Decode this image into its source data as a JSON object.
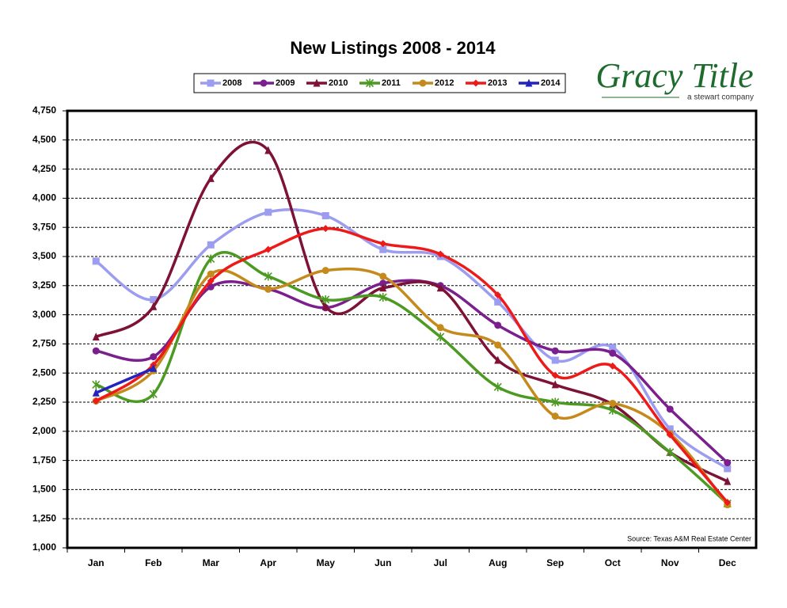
{
  "chart_data": {
    "type": "line",
    "title": "New Listings 2008 - 2014",
    "logo": {
      "name": "Gracy Title",
      "tagline": "a stewart company"
    },
    "source": "Source: Texas A&M Real Estate Center",
    "categories": [
      "Jan",
      "Feb",
      "Mar",
      "Apr",
      "May",
      "Jun",
      "Jul",
      "Aug",
      "Sep",
      "Oct",
      "Nov",
      "Dec"
    ],
    "series": [
      {
        "name": "2008",
        "color": "#9c9cf0",
        "marker": "square",
        "values": [
          3460,
          3130,
          3600,
          3880,
          3850,
          3560,
          3500,
          3110,
          2610,
          2720,
          2020,
          1680
        ]
      },
      {
        "name": "2009",
        "color": "#7b1f8e",
        "marker": "circle",
        "values": [
          2690,
          2640,
          3240,
          3220,
          3060,
          3270,
          3250,
          2910,
          2690,
          2670,
          2190,
          1730
        ]
      },
      {
        "name": "2010",
        "color": "#7d1236",
        "marker": "triangle",
        "values": [
          2810,
          3070,
          4170,
          4410,
          3070,
          3230,
          3230,
          2610,
          2400,
          2230,
          1820,
          1570
        ]
      },
      {
        "name": "2011",
        "color": "#4c9a22",
        "marker": "x",
        "values": [
          2400,
          2320,
          3480,
          3330,
          3130,
          3150,
          2810,
          2380,
          2250,
          2180,
          1820,
          1380
        ]
      },
      {
        "name": "2012",
        "color": "#c58a1c",
        "marker": "circle",
        "values": [
          2260,
          2520,
          3350,
          3220,
          3380,
          3330,
          2890,
          2740,
          2130,
          2240,
          1980,
          1370
        ]
      },
      {
        "name": "2013",
        "color": "#ee1a1a",
        "marker": "diamond",
        "values": [
          2260,
          2570,
          3290,
          3560,
          3740,
          3610,
          3520,
          3170,
          2480,
          2560,
          1970,
          1390
        ]
      },
      {
        "name": "2014",
        "color": "#2323bd",
        "marker": "triangle",
        "values": [
          2330,
          2540,
          null,
          null,
          null,
          null,
          null,
          null,
          null,
          null,
          null,
          null
        ]
      }
    ],
    "ylim": [
      1000,
      4750
    ],
    "yticks": [
      {
        "value": 1000,
        "label": "1,000"
      },
      {
        "value": 1250,
        "label": "1,250"
      },
      {
        "value": 1500,
        "label": "1,500"
      },
      {
        "value": 1750,
        "label": "1,750"
      },
      {
        "value": 2000,
        "label": "2,000"
      },
      {
        "value": 2250,
        "label": "2,250"
      },
      {
        "value": 2500,
        "label": "2,500"
      },
      {
        "value": 2750,
        "label": "2,750"
      },
      {
        "value": 3000,
        "label": "3,000"
      },
      {
        "value": 3250,
        "label": "3,250"
      },
      {
        "value": 3500,
        "label": "3,500"
      },
      {
        "value": 3750,
        "label": "3,750"
      },
      {
        "value": 4000,
        "label": "4,000"
      },
      {
        "value": 4250,
        "label": "4,250"
      },
      {
        "value": 4500,
        "label": "4,500"
      },
      {
        "value": 4750,
        "label": "4,750"
      }
    ],
    "grid": true,
    "smooth": true,
    "legend": "top"
  }
}
